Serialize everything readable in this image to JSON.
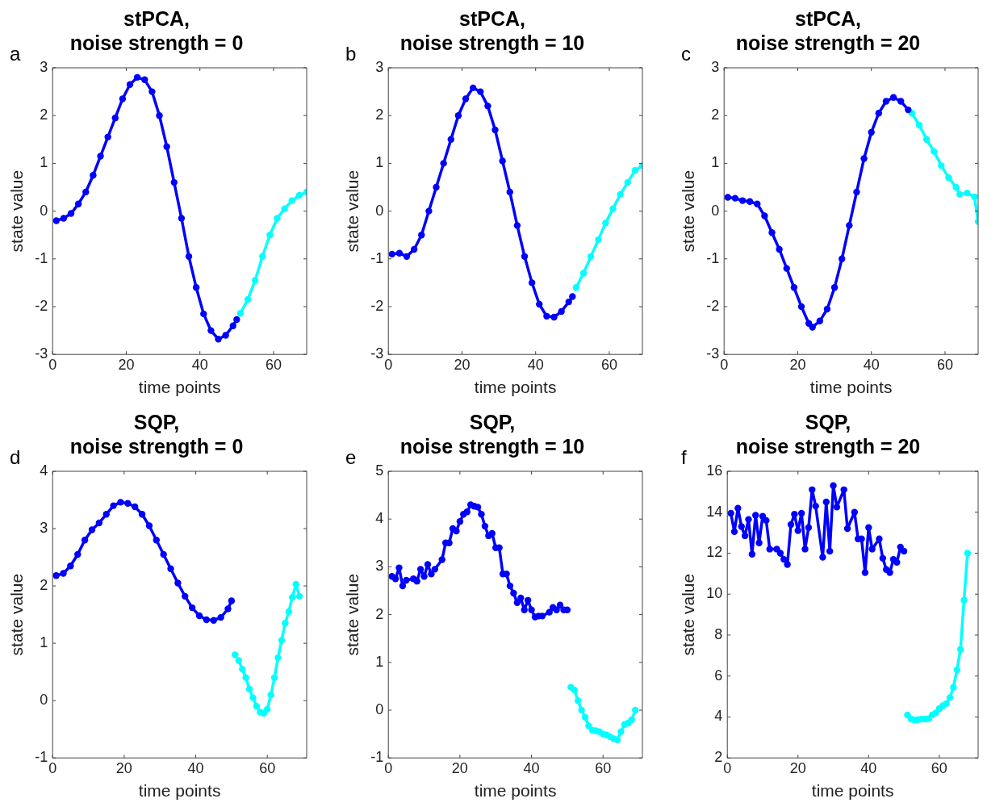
{
  "chart_data": [
    {
      "type": "line",
      "title": "stPCA,\nnoise strength = 0",
      "xlabel": "time points",
      "ylabel": "state value",
      "annotations": [
        "a"
      ],
      "xlim": [
        0,
        69
      ],
      "ylim": [
        -3,
        3
      ],
      "xticks": [
        0,
        20,
        40,
        60
      ],
      "yticks": [
        -3,
        -2,
        -1,
        0,
        1,
        2,
        3
      ],
      "grid": false,
      "legend": false,
      "marker": "circle",
      "line_style": "solid",
      "series": [
        {
          "color": "#0000ff",
          "x": [
            1,
            3,
            5,
            7,
            9,
            11,
            13,
            15,
            17,
            19,
            21,
            23,
            25,
            27,
            29,
            31,
            33,
            35,
            37,
            39,
            41,
            43,
            45,
            47,
            49,
            50
          ],
          "values": [
            -0.2,
            -0.15,
            -0.05,
            0.15,
            0.4,
            0.75,
            1.15,
            1.55,
            1.95,
            2.35,
            2.65,
            2.8,
            2.75,
            2.5,
            2.0,
            1.35,
            0.6,
            -0.15,
            -0.95,
            -1.6,
            -2.15,
            -2.5,
            -2.68,
            -2.6,
            -2.4,
            -2.27
          ]
        },
        {
          "color": "#00ffff",
          "x": [
            51,
            53,
            55,
            57,
            59,
            61,
            63,
            65,
            67,
            69
          ],
          "values": [
            -2.14,
            -1.85,
            -1.45,
            -0.95,
            -0.5,
            -0.15,
            0.05,
            0.22,
            0.33,
            0.4
          ]
        }
      ]
    },
    {
      "type": "line",
      "title": "stPCA,\nnoise strength = 10",
      "xlabel": "time points",
      "ylabel": "state value",
      "annotations": [
        "b"
      ],
      "xlim": [
        0,
        69
      ],
      "ylim": [
        -3,
        3
      ],
      "xticks": [
        0,
        20,
        40,
        60
      ],
      "yticks": [
        -3,
        -2,
        -1,
        0,
        1,
        2,
        3
      ],
      "grid": false,
      "legend": false,
      "marker": "circle",
      "line_style": "solid",
      "series": [
        {
          "color": "#0000ff",
          "x": [
            1,
            3,
            5,
            7,
            9,
            11,
            13,
            15,
            17,
            19,
            21,
            23,
            25,
            27,
            29,
            31,
            33,
            35,
            37,
            39,
            41,
            43,
            45,
            47,
            49,
            50
          ],
          "values": [
            -0.9,
            -0.88,
            -0.95,
            -0.8,
            -0.5,
            0.0,
            0.5,
            1.0,
            1.5,
            2.0,
            2.35,
            2.58,
            2.5,
            2.2,
            1.7,
            1.05,
            0.4,
            -0.3,
            -0.95,
            -1.5,
            -1.95,
            -2.2,
            -2.22,
            -2.1,
            -1.9,
            -1.79
          ]
        },
        {
          "color": "#00ffff",
          "x": [
            51,
            53,
            55,
            57,
            59,
            61,
            63,
            65,
            67,
            69
          ],
          "values": [
            -1.6,
            -1.3,
            -0.95,
            -0.6,
            -0.25,
            0.05,
            0.35,
            0.6,
            0.85,
            0.95
          ]
        }
      ]
    },
    {
      "type": "line",
      "title": "stPCA,\nnoise strength = 20",
      "xlabel": "time points",
      "ylabel": "state value",
      "annotations": [
        "c"
      ],
      "xlim": [
        0,
        69
      ],
      "ylim": [
        -3,
        3
      ],
      "xticks": [
        0,
        20,
        40,
        60
      ],
      "yticks": [
        -3,
        -2,
        -1,
        0,
        1,
        2,
        3
      ],
      "grid": false,
      "legend": false,
      "marker": "circle",
      "line_style": "solid",
      "series": [
        {
          "color": "#0000ff",
          "x": [
            1,
            3,
            5,
            7,
            9,
            11,
            13,
            15,
            17,
            19,
            21,
            23,
            24,
            26,
            28,
            30,
            32,
            34,
            36,
            38,
            40,
            42,
            44,
            46,
            48,
            50
          ],
          "values": [
            0.29,
            0.27,
            0.22,
            0.2,
            0.15,
            -0.1,
            -0.45,
            -0.8,
            -1.2,
            -1.6,
            -2.0,
            -2.35,
            -2.43,
            -2.3,
            -2.05,
            -1.6,
            -1.0,
            -0.3,
            0.4,
            1.1,
            1.65,
            2.05,
            2.3,
            2.38,
            2.3,
            2.12
          ]
        },
        {
          "color": "#00ffff",
          "x": [
            51,
            53,
            55,
            57,
            59,
            61,
            63,
            64,
            66,
            68,
            69
          ],
          "values": [
            2.05,
            1.8,
            1.5,
            1.25,
            0.95,
            0.7,
            0.5,
            0.35,
            0.38,
            0.3,
            -0.22
          ]
        }
      ]
    },
    {
      "type": "line",
      "title": "SQP,\nnoise strength = 0",
      "xlabel": "time points",
      "ylabel": "state value",
      "annotations": [
        "d"
      ],
      "xlim": [
        0,
        71
      ],
      "ylim": [
        -1,
        4
      ],
      "xticks": [
        0,
        20,
        40,
        60
      ],
      "yticks": [
        -1,
        0,
        1,
        2,
        3,
        4
      ],
      "grid": false,
      "legend": false,
      "marker": "circle",
      "line_style": "solid",
      "series": [
        {
          "color": "#0000ff",
          "x": [
            1,
            3,
            5,
            7,
            9,
            11,
            13,
            15,
            17,
            19,
            21,
            23,
            25,
            27,
            29,
            31,
            33,
            35,
            37,
            39,
            41,
            43,
            45,
            47,
            49,
            50
          ],
          "values": [
            2.18,
            2.22,
            2.35,
            2.55,
            2.8,
            2.98,
            3.1,
            3.25,
            3.4,
            3.46,
            3.44,
            3.38,
            3.25,
            3.05,
            2.8,
            2.55,
            2.3,
            2.05,
            1.82,
            1.62,
            1.48,
            1.41,
            1.4,
            1.45,
            1.6,
            1.74
          ]
        },
        {
          "color": "#00ffff",
          "x": [
            51,
            52,
            53,
            54,
            55,
            56,
            57,
            58,
            59,
            60,
            61,
            62,
            63,
            64,
            65,
            66,
            67,
            68,
            69
          ],
          "values": [
            0.8,
            0.7,
            0.55,
            0.4,
            0.2,
            0.05,
            -0.1,
            -0.2,
            -0.22,
            -0.15,
            0.1,
            0.4,
            0.75,
            1.05,
            1.35,
            1.55,
            1.8,
            2.03,
            1.82
          ]
        }
      ]
    },
    {
      "type": "line",
      "title": "SQP,\nnoise strength = 10",
      "xlabel": "time points",
      "ylabel": "state value",
      "annotations": [
        "e"
      ],
      "xlim": [
        0,
        71
      ],
      "ylim": [
        -1,
        5
      ],
      "xticks": [
        0,
        20,
        40,
        60
      ],
      "yticks": [
        -1,
        0,
        1,
        2,
        3,
        4,
        5
      ],
      "grid": false,
      "legend": false,
      "marker": "circle",
      "line_style": "solid",
      "series": [
        {
          "color": "#0000ff",
          "x": [
            1,
            2,
            3,
            4,
            5,
            7,
            8,
            9,
            10,
            11,
            12,
            13,
            15,
            16,
            17,
            18,
            19,
            20,
            21,
            22,
            23,
            24,
            25,
            26,
            27,
            28,
            29,
            30,
            31,
            32,
            33,
            34,
            35,
            36,
            37,
            38,
            39,
            40,
            41,
            42,
            43,
            45,
            46,
            47,
            48,
            49,
            50
          ],
          "values": [
            2.8,
            2.75,
            2.98,
            2.6,
            2.72,
            2.75,
            2.7,
            2.95,
            2.8,
            3.05,
            2.85,
            2.95,
            3.15,
            3.5,
            3.5,
            3.8,
            3.75,
            3.95,
            4.1,
            4.15,
            4.3,
            4.27,
            4.25,
            4.1,
            3.85,
            3.65,
            3.7,
            3.4,
            3.4,
            2.85,
            2.85,
            2.6,
            2.45,
            2.25,
            2.35,
            2.1,
            2.3,
            2.1,
            1.95,
            1.97,
            1.97,
            2.05,
            2.15,
            2.1,
            2.2,
            2.1,
            2.1
          ]
        },
        {
          "color": "#00ffff",
          "x": [
            51,
            52,
            53,
            54,
            55,
            56,
            57,
            58,
            59,
            60,
            61,
            62,
            63,
            64,
            65,
            66,
            67,
            68,
            69
          ],
          "values": [
            0.48,
            0.42,
            0.2,
            0.0,
            -0.15,
            -0.33,
            -0.42,
            -0.43,
            -0.45,
            -0.5,
            -0.52,
            -0.56,
            -0.6,
            -0.62,
            -0.45,
            -0.3,
            -0.27,
            -0.2,
            0.0
          ]
        }
      ]
    },
    {
      "type": "line",
      "title": "SQP,\nnoise strength = 20",
      "xlabel": "time points",
      "ylabel": "state value",
      "annotations": [
        "f"
      ],
      "xlim": [
        0,
        71
      ],
      "ylim": [
        2,
        16
      ],
      "xticks": [
        0,
        20,
        40,
        60
      ],
      "yticks": [
        2,
        4,
        6,
        8,
        10,
        12,
        14,
        16
      ],
      "grid": false,
      "legend": false,
      "marker": "circle",
      "line_style": "solid",
      "series": [
        {
          "color": "#0000ff",
          "x": [
            1,
            2,
            3,
            4,
            5,
            6,
            7,
            8,
            9,
            10,
            11,
            12,
            14,
            15,
            16,
            17,
            18,
            19,
            20,
            21,
            22,
            23,
            24,
            25,
            27,
            28,
            29,
            30,
            31,
            33,
            34,
            36,
            37,
            38,
            39,
            40,
            41,
            43,
            44,
            45,
            46,
            47,
            48,
            49,
            50
          ],
          "values": [
            13.95,
            13.05,
            14.2,
            13.3,
            12.85,
            13.65,
            11.95,
            13.85,
            12.5,
            13.8,
            13.6,
            12.2,
            12.2,
            12.0,
            11.7,
            11.45,
            13.4,
            13.9,
            13.1,
            13.95,
            12.2,
            13.25,
            15.1,
            14.3,
            11.8,
            14.5,
            12.1,
            15.3,
            14.25,
            15.1,
            13.2,
            14.0,
            12.7,
            12.7,
            11.05,
            13.25,
            12.2,
            12.7,
            11.75,
            11.2,
            11.05,
            11.7,
            11.55,
            12.3,
            12.1
          ]
        },
        {
          "color": "#00ffff",
          "x": [
            51,
            52,
            53,
            54,
            55,
            56,
            57,
            58,
            59,
            60,
            61,
            62,
            63,
            64,
            65,
            66,
            67,
            68
          ],
          "values": [
            4.1,
            3.9,
            3.85,
            3.87,
            3.9,
            3.9,
            3.92,
            4.1,
            4.2,
            4.4,
            4.55,
            4.65,
            4.95,
            5.45,
            6.3,
            7.3,
            9.7,
            12.0
          ]
        }
      ]
    }
  ]
}
